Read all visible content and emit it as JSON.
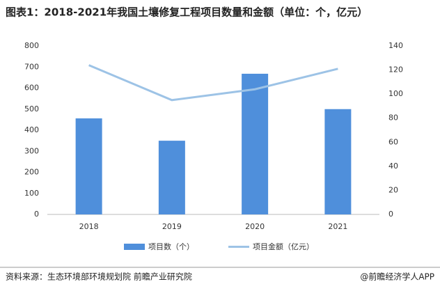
{
  "chart_data": {
    "type": "bar_line",
    "title": "图表1：2018-2021年我国土壤修复工程项目数量和金额（单位：个，亿元）",
    "categories": [
      "2018",
      "2019",
      "2020",
      "2021"
    ],
    "series": [
      {
        "name": "项目数（个）",
        "type": "bar",
        "color": "#4f8fdb",
        "values": [
          456,
          350,
          668,
          500
        ]
      },
      {
        "name": "项目金额（亿元）",
        "type": "line",
        "axis": "y2",
        "color": "#9dc3e6",
        "values": [
          124,
          95,
          104,
          121
        ]
      }
    ],
    "ylim": [
      0,
      800
    ],
    "yticks": [
      0,
      100,
      200,
      300,
      400,
      500,
      600,
      700,
      800
    ],
    "y2lim": [
      0,
      140
    ],
    "y2ticks": [
      0,
      20,
      40,
      60,
      80,
      100,
      120,
      140
    ],
    "grid": false,
    "legend": "bottom",
    "source": "资料来源：生态环境部环境规划院 前瞻产业研究院",
    "credit": "@前瞻经济学人APP"
  }
}
